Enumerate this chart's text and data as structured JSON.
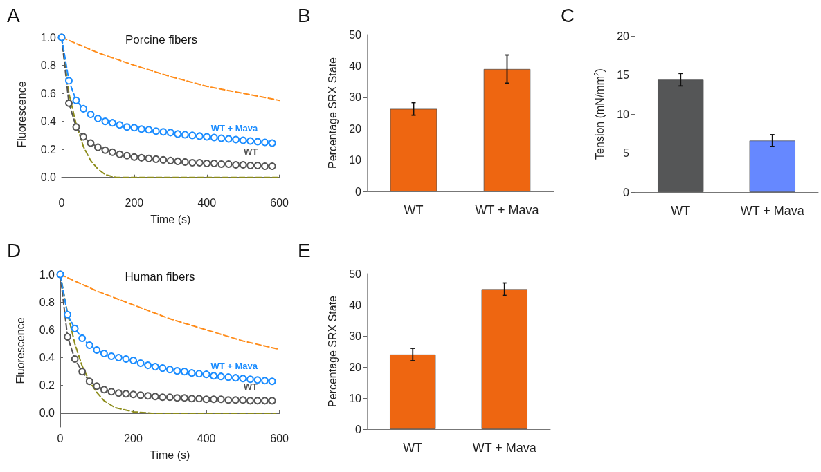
{
  "chart_data": [
    {
      "type": "line",
      "title": "Porcine fibers",
      "xlabel": "Time (s)",
      "ylabel": "Fluorescence",
      "annotations": [
        "A"
      ],
      "xlim": [
        0,
        600
      ],
      "xticks": [
        0,
        200,
        400,
        600
      ],
      "ylim": [
        -0.1,
        1.0
      ],
      "yticks": [
        {
          "value": 0,
          "label": "0.0"
        },
        {
          "value": 0.2,
          "label": "0.2"
        },
        {
          "value": 0.4,
          "label": "0.4"
        },
        {
          "value": 0.6,
          "label": "0.6"
        },
        {
          "value": 0.8,
          "label": "0.8"
        },
        {
          "value": 1,
          "label": "1.0"
        }
      ],
      "grid": false,
      "legend": false,
      "series": [
        {
          "color": "#ff8c1a",
          "line_style": "dashed",
          "marker": "none",
          "x": [
            0,
            100,
            200,
            300,
            400,
            500,
            600
          ],
          "values": [
            1.0,
            0.89,
            0.8,
            0.72,
            0.65,
            0.6,
            0.55
          ]
        },
        {
          "color": "#8c8c1a",
          "line_style": "dashed",
          "marker": "none",
          "x": [
            0,
            20,
            40,
            60,
            80,
            100,
            120,
            150,
            200,
            600
          ],
          "values": [
            1.0,
            0.6,
            0.38,
            0.22,
            0.12,
            0.06,
            0.02,
            0,
            0,
            0
          ]
        },
        {
          "name": "WT + Mava",
          "color": "#1a8cff",
          "line_style": "dashed",
          "marker": "circle",
          "x": [
            0,
            20,
            40,
            60,
            80,
            100,
            120,
            140,
            160,
            180,
            200,
            220,
            240,
            260,
            280,
            300,
            320,
            340,
            360,
            380,
            400,
            420,
            440,
            460,
            480,
            500,
            520,
            540,
            560,
            580
          ],
          "values": [
            1.0,
            0.69,
            0.55,
            0.49,
            0.45,
            0.42,
            0.4,
            0.39,
            0.375,
            0.36,
            0.355,
            0.345,
            0.34,
            0.33,
            0.325,
            0.32,
            0.31,
            0.305,
            0.3,
            0.295,
            0.29,
            0.285,
            0.28,
            0.275,
            0.27,
            0.265,
            0.26,
            0.255,
            0.25,
            0.245
          ]
        },
        {
          "name": "WT",
          "color": "#555555",
          "line_style": "dashed",
          "marker": "circle",
          "x": [
            0,
            20,
            40,
            60,
            80,
            100,
            120,
            140,
            160,
            180,
            200,
            220,
            240,
            260,
            280,
            300,
            320,
            340,
            360,
            380,
            400,
            420,
            440,
            460,
            480,
            500,
            520,
            540,
            560,
            580
          ],
          "values": [
            1.0,
            0.53,
            0.36,
            0.29,
            0.245,
            0.215,
            0.195,
            0.18,
            0.165,
            0.155,
            0.145,
            0.14,
            0.135,
            0.13,
            0.125,
            0.12,
            0.115,
            0.11,
            0.105,
            0.105,
            0.1,
            0.1,
            0.095,
            0.095,
            0.09,
            0.09,
            0.085,
            0.085,
            0.08,
            0.08
          ]
        }
      ]
    },
    {
      "type": "bar",
      "ylabel": "Percentage SRX State",
      "annotations": [
        "B"
      ],
      "categories": [
        "WT",
        "WT + Mava"
      ],
      "values": [
        26.3,
        39
      ],
      "errors": [
        2,
        4.5
      ],
      "colors": [
        "#ee6611",
        "#ee6611"
      ],
      "ylim": [
        0,
        50
      ],
      "yticks": [
        0,
        10,
        20,
        30,
        40,
        50
      ],
      "grid": false,
      "legend": false
    },
    {
      "type": "bar",
      "ylabel": "Tension (mN/mm$^{2}$)",
      "annotations": [
        "C"
      ],
      "categories": [
        "WT",
        "WT + Mava"
      ],
      "values": [
        14.4,
        6.6
      ],
      "errors": [
        0.8,
        0.75
      ],
      "colors": [
        "#555657",
        "#6688ff"
      ],
      "ylim": [
        0,
        20
      ],
      "yticks": [
        0,
        5,
        10,
        15,
        20
      ],
      "grid": false,
      "legend": false
    },
    {
      "type": "line",
      "title": "Human fibers",
      "xlabel": "Time (s)",
      "ylabel": "Fluorescence",
      "annotations": [
        "D"
      ],
      "xlim": [
        0,
        600
      ],
      "xticks": [
        0,
        200,
        400,
        600
      ],
      "ylim": [
        -0.1,
        1.0
      ],
      "yticks": [
        {
          "value": 0,
          "label": "0.0"
        },
        {
          "value": 0.2,
          "label": "0.2"
        },
        {
          "value": 0.4,
          "label": "0.4"
        },
        {
          "value": 0.6,
          "label": "0.6"
        },
        {
          "value": 0.8,
          "label": "0.8"
        },
        {
          "value": 1,
          "label": "1.0"
        }
      ],
      "grid": false,
      "legend": false,
      "series": [
        {
          "color": "#ff8c1a",
          "line_style": "dashed",
          "marker": "none",
          "x": [
            0,
            100,
            200,
            300,
            400,
            500,
            600
          ],
          "values": [
            1.0,
            0.88,
            0.78,
            0.68,
            0.6,
            0.52,
            0.46
          ]
        },
        {
          "color": "#8c8c1a",
          "line_style": "dashed",
          "marker": "none",
          "x": [
            0,
            20,
            40,
            60,
            80,
            100,
            120,
            150,
            200,
            250,
            590
          ],
          "values": [
            1.0,
            0.72,
            0.5,
            0.34,
            0.23,
            0.15,
            0.09,
            0.04,
            0.01,
            0,
            0
          ]
        },
        {
          "name": "WT + Mava",
          "color": "#1a8cff",
          "line_style": "dashed",
          "marker": "circle",
          "x": [
            0,
            20,
            40,
            60,
            80,
            100,
            120,
            140,
            160,
            180,
            200,
            220,
            240,
            260,
            280,
            300,
            320,
            340,
            360,
            380,
            400,
            420,
            440,
            460,
            480,
            500,
            520,
            540,
            560,
            580
          ],
          "values": [
            1.0,
            0.71,
            0.61,
            0.54,
            0.49,
            0.455,
            0.43,
            0.41,
            0.4,
            0.39,
            0.38,
            0.36,
            0.345,
            0.335,
            0.325,
            0.315,
            0.305,
            0.3,
            0.29,
            0.285,
            0.28,
            0.27,
            0.265,
            0.26,
            0.255,
            0.25,
            0.245,
            0.24,
            0.235,
            0.23
          ]
        },
        {
          "name": "WT",
          "color": "#555555",
          "line_style": "dashed",
          "marker": "circle",
          "x": [
            0,
            20,
            40,
            60,
            80,
            100,
            120,
            140,
            160,
            180,
            200,
            220,
            240,
            260,
            280,
            300,
            320,
            340,
            360,
            380,
            400,
            420,
            440,
            460,
            480,
            500,
            520,
            540,
            560,
            580
          ],
          "values": [
            1.0,
            0.55,
            0.39,
            0.3,
            0.23,
            0.195,
            0.17,
            0.155,
            0.145,
            0.14,
            0.135,
            0.13,
            0.125,
            0.12,
            0.115,
            0.115,
            0.11,
            0.11,
            0.105,
            0.105,
            0.1,
            0.1,
            0.1,
            0.095,
            0.095,
            0.095,
            0.09,
            0.09,
            0.09,
            0.09
          ]
        }
      ]
    },
    {
      "type": "bar",
      "ylabel": "Percentage SRX State",
      "annotations": [
        "E"
      ],
      "categories": [
        "WT",
        "WT + Mava"
      ],
      "values": [
        24,
        45
      ],
      "errors": [
        2,
        2
      ],
      "colors": [
        "#ee6611",
        "#ee6611"
      ],
      "ylim": [
        0,
        50
      ],
      "yticks": [
        0,
        10,
        20,
        30,
        40,
        50
      ],
      "grid": false,
      "legend": false
    }
  ]
}
